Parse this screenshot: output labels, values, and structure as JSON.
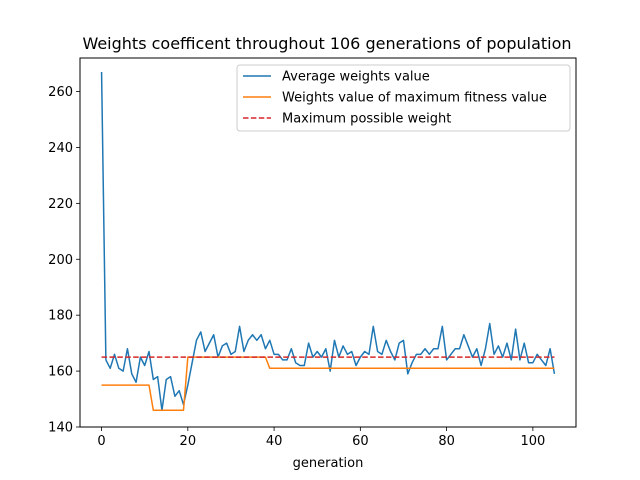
{
  "chart_data": {
    "type": "line",
    "title": "Weights coefficent throughout 106 generations of population",
    "xlabel": "generation",
    "ylabel": "",
    "xlim": [
      -5,
      110
    ],
    "ylim": [
      140,
      272
    ],
    "xticks": [
      0,
      20,
      40,
      60,
      80,
      100
    ],
    "yticks": [
      140,
      160,
      180,
      200,
      220,
      240,
      260
    ],
    "grid": false,
    "legend_position": "top-right",
    "series": [
      {
        "name": "Average weights value",
        "color": "#1f77b4",
        "style": "solid",
        "x": [
          0,
          1,
          2,
          3,
          4,
          5,
          6,
          7,
          8,
          9,
          10,
          11,
          12,
          13,
          14,
          15,
          16,
          17,
          18,
          19,
          20,
          21,
          22,
          23,
          24,
          25,
          26,
          27,
          28,
          29,
          30,
          31,
          32,
          33,
          34,
          35,
          36,
          37,
          38,
          39,
          40,
          41,
          42,
          43,
          44,
          45,
          46,
          47,
          48,
          49,
          50,
          51,
          52,
          53,
          54,
          55,
          56,
          57,
          58,
          59,
          60,
          61,
          62,
          63,
          64,
          65,
          66,
          67,
          68,
          69,
          70,
          71,
          72,
          73,
          74,
          75,
          76,
          77,
          78,
          79,
          80,
          81,
          82,
          83,
          84,
          85,
          86,
          87,
          88,
          89,
          90,
          91,
          92,
          93,
          94,
          95,
          96,
          97,
          98,
          99,
          100,
          101,
          102,
          103,
          104,
          105
        ],
        "values": [
          267,
          164,
          161,
          166,
          161,
          160,
          168,
          159,
          156,
          165,
          162,
          167,
          157,
          158,
          146,
          157,
          158,
          151,
          153,
          148,
          155,
          163,
          171,
          174,
          167,
          170,
          173,
          165,
          169,
          170,
          166,
          167,
          176,
          167,
          171,
          173,
          171,
          173,
          168,
          171,
          166,
          166,
          164,
          164,
          168,
          163,
          162,
          162,
          170,
          165,
          167,
          165,
          168,
          160,
          171,
          165,
          169,
          166,
          167,
          162,
          165,
          167,
          166,
          176,
          167,
          166,
          171,
          167,
          164,
          170,
          171,
          159,
          163,
          166,
          166,
          168,
          166,
          168,
          168,
          176,
          164,
          166,
          168,
          168,
          173,
          169,
          165,
          168,
          162,
          168,
          177,
          166,
          169,
          165,
          170,
          164,
          175,
          164,
          170,
          163,
          163,
          166,
          164,
          162,
          168,
          159
        ]
      },
      {
        "name": "Weights value of maximum fitness value",
        "color": "#ff7f0e",
        "style": "solid",
        "x": [
          0,
          11,
          12,
          19,
          20,
          38,
          39,
          105
        ],
        "values": [
          155,
          155,
          146,
          146,
          165,
          165,
          161,
          161
        ]
      },
      {
        "name": "Maximum possible weight",
        "color": "#d62728",
        "style": "dashed",
        "x": [
          0,
          105
        ],
        "values": [
          165,
          165
        ]
      }
    ]
  }
}
